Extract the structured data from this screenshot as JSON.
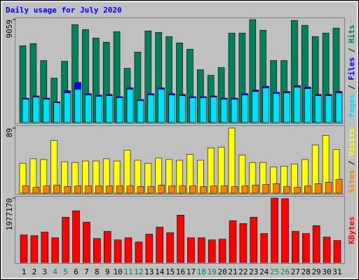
{
  "legend_separator": "/",
  "chart_data": [
    {
      "type": "bar",
      "title": "Daily usage for July 2020",
      "ylim": [
        0,
        9059
      ],
      "yticks": [
        9059
      ],
      "series": [
        {
          "name": "Hits",
          "color": "#00805c",
          "values": [
            6758,
            6944,
            5456,
            3906,
            5394,
            8618,
            8184,
            7440,
            7068,
            7998,
            4774,
            6200,
            8060,
            7936,
            7564,
            7006,
            6448,
            4650,
            4154,
            4836,
            7874,
            7874,
            9059,
            8122,
            5456,
            5456,
            8990,
            8556,
            7564,
            7874,
            8308
          ]
        },
        {
          "name": "Files",
          "color": "#0000ff",
          "values": [
            2148,
            2343,
            2148,
            1823,
            2790,
            3534,
            2539,
            2409,
            2474,
            2279,
            3060,
            2018,
            2539,
            3060,
            2539,
            2474,
            2279,
            2279,
            2343,
            2148,
            2148,
            2539,
            2864,
            3190,
            2669,
            2734,
            3255,
            3125,
            2474,
            2474,
            2734
          ]
        },
        {
          "name": "Pages",
          "color": "#00e0ff",
          "values": [
            2046,
            2232,
            2046,
            1736,
            2604,
            2914,
            2418,
            2294,
            2356,
            2170,
            2914,
            1922,
            2418,
            2914,
            2418,
            2356,
            2170,
            2170,
            2232,
            2046,
            2046,
            2418,
            2728,
            3038,
            2542,
            2604,
            3100,
            2976,
            2356,
            2356,
            2604
          ]
        }
      ]
    },
    {
      "type": "bar",
      "ylim": [
        0,
        89
      ],
      "yticks": [
        89
      ],
      "series": [
        {
          "name": "Visits",
          "color": "#ffff00",
          "values": [
            41,
            47,
            46,
            72,
            43,
            42,
            44,
            44,
            47,
            44,
            59,
            45,
            41,
            48,
            46,
            45,
            53,
            45,
            62,
            63,
            89,
            52,
            42,
            42,
            36,
            37,
            40,
            46,
            66,
            79,
            60
          ]
        },
        {
          "name": "Sites",
          "color": "#ff8000",
          "values": [
            10,
            8,
            10,
            11,
            9,
            10,
            10,
            10,
            10,
            10,
            10,
            9,
            9,
            11,
            10,
            10,
            10,
            9,
            10,
            10,
            9,
            10,
            11,
            12,
            13,
            9,
            8,
            10,
            13,
            15,
            19
          ]
        }
      ]
    },
    {
      "type": "bar",
      "ylim": [
        0,
        1977170
      ],
      "yticks": [
        1977170
      ],
      "categories": [
        "1",
        "2",
        "3",
        "4",
        "5",
        "6",
        "7",
        "8",
        "9",
        "10",
        "11",
        "12",
        "13",
        "14",
        "15",
        "16",
        "17",
        "18",
        "19",
        "20",
        "21",
        "22",
        "23",
        "24",
        "25",
        "26",
        "27",
        "28",
        "29",
        "30",
        "31"
      ],
      "category_colors": [
        "#000000",
        "#000000",
        "#000000",
        "#00805c",
        "#00805c",
        "#000000",
        "#000000",
        "#000000",
        "#000000",
        "#000000",
        "#00805c",
        "#00805c",
        "#000000",
        "#000000",
        "#000000",
        "#000000",
        "#000000",
        "#00805c",
        "#00805c",
        "#000000",
        "#000000",
        "#000000",
        "#000000",
        "#000000",
        "#00805c",
        "#00805c",
        "#000000",
        "#000000",
        "#000000",
        "#000000",
        "#000000"
      ],
      "series": [
        {
          "name": "KBytes",
          "color": "#ff0000",
          "values": [
            847000,
            826000,
            934000,
            760000,
            1390000,
            1586000,
            1238000,
            739000,
            956000,
            695000,
            760000,
            630000,
            869000,
            1086000,
            913000,
            1456000,
            760000,
            760000,
            695000,
            717000,
            1282000,
            1195000,
            1390000,
            891000,
            1977170,
            1960000,
            956000,
            891000,
            1130000,
            782000,
            674000
          ]
        }
      ]
    }
  ]
}
